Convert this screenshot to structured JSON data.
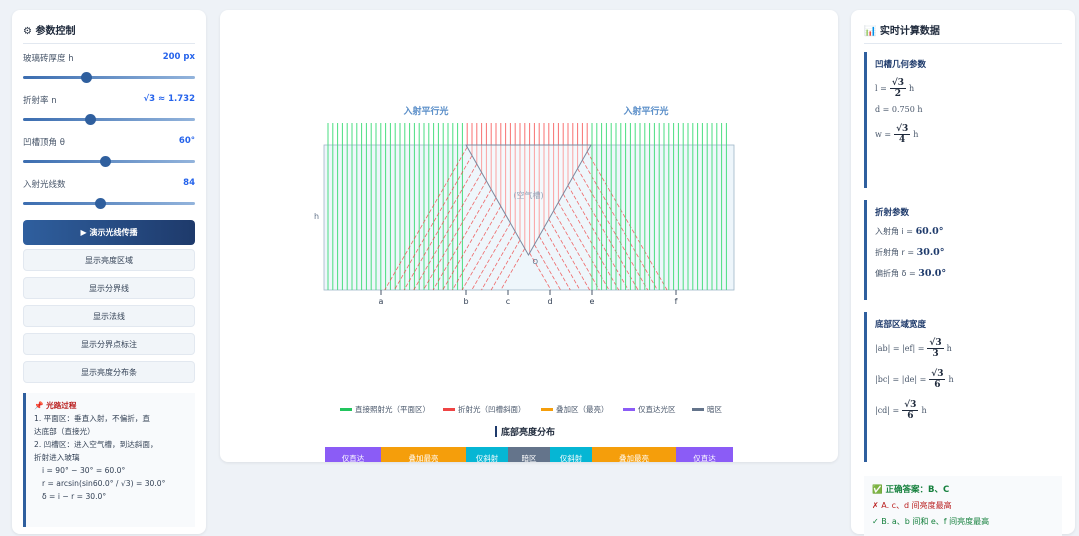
{
  "left_panel": {
    "title": "参数控制",
    "params": [
      {
        "label": "玻璃砖厚度 h",
        "value": "200 px"
      },
      {
        "label": "折射率 n",
        "value": "√3 ≈ 1.732"
      },
      {
        "label": "凹槽顶角 θ",
        "value": "60°"
      },
      {
        "label": "入射光线数",
        "value": "84"
      }
    ],
    "primary_button": "▶ 演示光线传播",
    "buttons": [
      "显示亮度区域",
      "显示分界线",
      "显示法线",
      "显示分界点标注",
      "显示亮度分布条"
    ],
    "note": {
      "title": "📌 光路过程",
      "lines": [
        "1. 平面区：垂直入射，不偏折，直",
        "达底部（直接光）",
        "2. 凹槽区：进入空气槽，到达斜面，",
        "折射进入玻璃",
        "i = 90° − 30° = 60.0°",
        "r = arcsin(sin60.0° / √3) = 30.0°",
        "δ = i − r = 30.0°"
      ]
    }
  },
  "diagram": {
    "incident_labels": [
      "入射平行光",
      "入射平行光"
    ],
    "thickness_label": "h",
    "groove_label": "(空气槽)",
    "vertex_label": "O",
    "points": [
      "a",
      "b",
      "c",
      "d",
      "e",
      "f"
    ],
    "legend": [
      {
        "label": "直接照射光（平面区）",
        "color": "#22c55e"
      },
      {
        "label": "折射光（凹槽斜面）",
        "color": "#ef4444"
      },
      {
        "label": "叠加区（最亮）",
        "color": "#f59e0b"
      },
      {
        "label": "仅直达光区",
        "color": "#8b5cf6"
      },
      {
        "label": "暗区",
        "color": "#64748b"
      }
    ],
    "distribution_title": "底部亮度分布",
    "distribution": [
      {
        "label": "仅直达",
        "color": "#8b5cf6"
      },
      {
        "label": "叠加最亮",
        "color": "#f59e0b"
      },
      {
        "label": "仅斜射",
        "color": "#06b6d4"
      },
      {
        "label": "暗区",
        "color": "#64748b"
      },
      {
        "label": "仅斜射",
        "color": "#06b6d4"
      },
      {
        "label": "叠加最亮",
        "color": "#f59e0b"
      },
      {
        "label": "仅直达",
        "color": "#8b5cf6"
      }
    ]
  },
  "right_panel": {
    "title": "📊 实时计算数据",
    "geometry": {
      "title": "凹槽几何参数",
      "l": {
        "lhs": "l =",
        "num": "√3",
        "den": "2",
        "unit": "h"
      },
      "d": "d = 0.750 h",
      "w": {
        "lhs": "w =",
        "num": "√3",
        "den": "4",
        "unit": "h"
      }
    },
    "refraction": {
      "title": "折射参数",
      "lines": [
        {
          "label": "入射角 i =",
          "value": "60.0°"
        },
        {
          "label": "折射角 r =",
          "value": "30.0°"
        },
        {
          "label": "偏折角 δ =",
          "value": "30.0°"
        }
      ]
    },
    "widths": {
      "title": "底部区域宽度",
      "items": [
        {
          "lhs": "|ab| = |ef| =",
          "num": "√3",
          "den": "3",
          "unit": "h"
        },
        {
          "lhs": "|bc| = |de| =",
          "num": "√3",
          "den": "6",
          "unit": "h"
        },
        {
          "lhs": "|cd| =",
          "num": "√3",
          "den": "6",
          "unit": "h"
        }
      ]
    },
    "answer": {
      "title": "✅ 正确答案：B、C",
      "lines": [
        "✗ A. c、d 间亮度最高",
        "✓ B. a、b 间和 e、f 间亮度最高"
      ]
    }
  }
}
